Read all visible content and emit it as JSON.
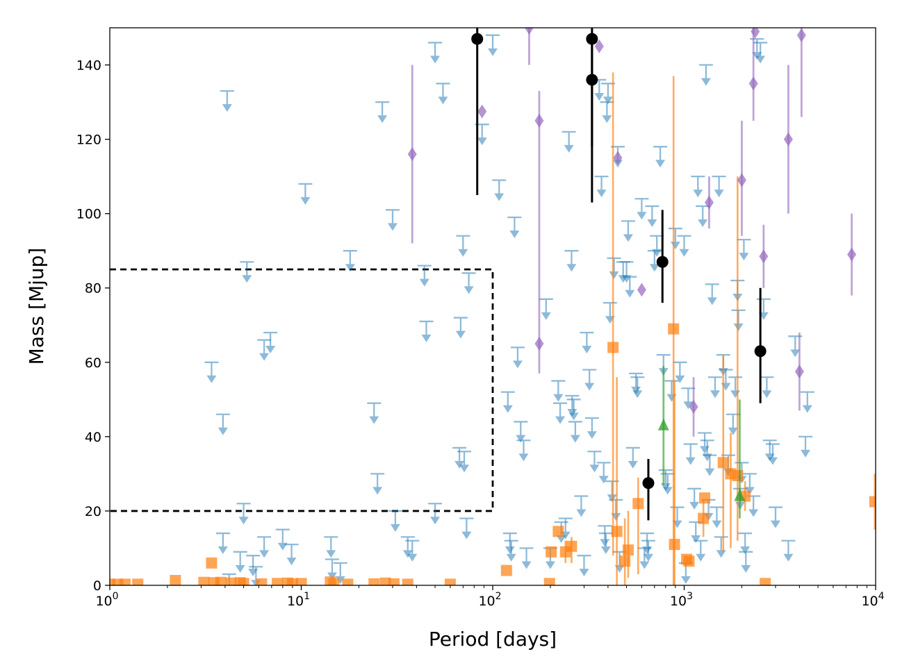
{
  "chart_data": {
    "type": "scatter",
    "title": "",
    "xlabel": "Period [days]",
    "ylabel": "Mass [Mjup]",
    "xscale": "log",
    "xlim": [
      1,
      10000
    ],
    "ylim": [
      0,
      150
    ],
    "x_ticks": [
      {
        "value": 1,
        "base": "10",
        "exp": "0"
      },
      {
        "value": 10,
        "base": "10",
        "exp": "1"
      },
      {
        "value": 100,
        "base": "10",
        "exp": "2"
      },
      {
        "value": 1000,
        "base": "10",
        "exp": "3"
      },
      {
        "value": 10000,
        "base": "10",
        "exp": "4"
      }
    ],
    "y_ticks": [
      "0",
      "20",
      "40",
      "60",
      "80",
      "100",
      "120",
      "140"
    ],
    "region": {
      "style": "dashed",
      "color": "#000000",
      "x": [
        1,
        100
      ],
      "y": [
        20,
        85
      ]
    },
    "series": [
      {
        "name": "upper limits",
        "marker": "down-arrow-limit",
        "color": "#1f77b4",
        "points": [
          [
            4.1,
            133
          ],
          [
            10.5,
            108
          ],
          [
            5.2,
            87
          ],
          [
            3.4,
            60
          ],
          [
            3.9,
            46
          ],
          [
            6.4,
            66
          ],
          [
            6.9,
            68
          ],
          [
            5.0,
            22
          ],
          [
            3.9,
            14
          ],
          [
            4.8,
            9
          ],
          [
            5.6,
            8
          ],
          [
            5.8,
            5
          ],
          [
            4.2,
            3
          ],
          [
            6.4,
            13
          ],
          [
            8.0,
            15
          ],
          [
            8.9,
            11
          ],
          [
            14.3,
            13
          ],
          [
            14.5,
            7
          ],
          [
            16.0,
            6
          ],
          [
            18.0,
            90
          ],
          [
            24.0,
            49
          ],
          [
            25.0,
            30
          ],
          [
            26.5,
            130
          ],
          [
            30.0,
            101
          ],
          [
            31.0,
            20
          ],
          [
            36.0,
            13
          ],
          [
            38.0,
            12
          ],
          [
            44.0,
            86
          ],
          [
            45.0,
            71
          ],
          [
            50.0,
            22
          ],
          [
            50.0,
            146
          ],
          [
            55.0,
            135
          ],
          [
            70.0,
            94
          ],
          [
            75.0,
            84
          ],
          [
            68.0,
            72
          ],
          [
            67.0,
            37
          ],
          [
            71.0,
            36
          ],
          [
            73.0,
            18
          ],
          [
            88.0,
            124
          ],
          [
            100.0,
            148
          ],
          [
            108.0,
            109
          ],
          [
            120.0,
            52
          ],
          [
            123.0,
            14
          ],
          [
            125.0,
            12
          ],
          [
            130.0,
            99
          ],
          [
            135.0,
            64
          ],
          [
            140.0,
            44
          ],
          [
            145.0,
            39
          ],
          [
            150.0,
            10
          ],
          [
            190.0,
            77
          ],
          [
            200.0,
            10
          ],
          [
            220.0,
            55
          ],
          [
            225.0,
            49
          ],
          [
            228.0,
            17
          ],
          [
            240.0,
            18
          ],
          [
            250.0,
            122
          ],
          [
            258.0,
            90
          ],
          [
            260.0,
            51
          ],
          [
            265.0,
            50
          ],
          [
            270.0,
            44
          ],
          [
            290.0,
            24
          ],
          [
            300.0,
            8
          ],
          [
            310.0,
            68
          ],
          [
            320.0,
            58
          ],
          [
            330.0,
            45
          ],
          [
            340.0,
            36
          ],
          [
            360.0,
            136
          ],
          [
            370.0,
            110
          ],
          [
            380.0,
            33
          ],
          [
            385.0,
            16
          ],
          [
            390.0,
            14
          ],
          [
            395.0,
            130
          ],
          [
            400.0,
            135
          ],
          [
            410.0,
            76
          ],
          [
            420.0,
            28
          ],
          [
            430.0,
            88
          ],
          [
            440.0,
            23
          ],
          [
            450.0,
            118
          ],
          [
            460.0,
            9
          ],
          [
            480.0,
            87
          ],
          [
            500.0,
            87
          ],
          [
            510.0,
            98
          ],
          [
            520.0,
            83
          ],
          [
            540.0,
            37
          ],
          [
            560.0,
            57
          ],
          [
            570.0,
            56
          ],
          [
            600.0,
            104
          ],
          [
            620.0,
            10
          ],
          [
            640.0,
            14
          ],
          [
            650.0,
            12
          ],
          [
            680.0,
            102
          ],
          [
            700.0,
            90
          ],
          [
            720.0,
            94
          ],
          [
            750.0,
            118
          ],
          [
            780.0,
            62
          ],
          [
            800.0,
            31
          ],
          [
            820.0,
            30
          ],
          [
            860.0,
            55
          ],
          [
            900.0,
            96
          ],
          [
            920.0,
            21
          ],
          [
            950.0,
            60
          ],
          [
            1000.0,
            94
          ],
          [
            1020.0,
            6
          ],
          [
            1050.0,
            53
          ],
          [
            1080.0,
            38
          ],
          [
            1130.0,
            26
          ],
          [
            1150.0,
            17
          ],
          [
            1180.0,
            110
          ],
          [
            1220.0,
            12
          ],
          [
            1250.0,
            102
          ],
          [
            1280.0,
            41
          ],
          [
            1300.0,
            140
          ],
          [
            1320.0,
            39
          ],
          [
            1340.0,
            23
          ],
          [
            1360.0,
            35
          ],
          [
            1400.0,
            81
          ],
          [
            1450.0,
            56
          ],
          [
            1480.0,
            21
          ],
          [
            1520.0,
            110
          ],
          [
            1560.0,
            13
          ],
          [
            1600.0,
            62
          ],
          [
            1650.0,
            58
          ],
          [
            1700.0,
            35
          ],
          [
            1800.0,
            46
          ],
          [
            1850.0,
            56
          ],
          [
            1900.0,
            82
          ],
          [
            1920.0,
            74
          ],
          [
            1960.0,
            26
          ],
          [
            2000.0,
            33
          ],
          [
            2050.0,
            93
          ],
          [
            2080.0,
            14
          ],
          [
            2100.0,
            9
          ],
          [
            2200.0,
            30
          ],
          [
            2300.0,
            24
          ],
          [
            2400.0,
            147
          ],
          [
            2500.0,
            146
          ],
          [
            2600.0,
            77
          ],
          [
            2700.0,
            56
          ],
          [
            2800.0,
            39
          ],
          [
            2900.0,
            38
          ],
          [
            3000.0,
            21
          ],
          [
            3500.0,
            12
          ],
          [
            3800.0,
            67
          ],
          [
            4300.0,
            40
          ],
          [
            4400.0,
            52
          ]
        ]
      },
      {
        "name": "orange squares",
        "marker": "square",
        "color": "#ff7f0e",
        "points": [
          [
            1.0,
            0.3
          ],
          [
            1.1,
            0.3
          ],
          [
            1.2,
            0.3
          ],
          [
            1.4,
            0.3
          ],
          [
            2.2,
            1.3
          ],
          [
            3.1,
            0.8
          ],
          [
            3.4,
            6
          ],
          [
            3.5,
            0.7
          ],
          [
            3.8,
            0.8
          ],
          [
            4.3,
            0.6
          ],
          [
            4.8,
            0.7
          ],
          [
            5.0,
            0.5
          ],
          [
            6.2,
            0.4
          ],
          [
            7.5,
            0.5
          ],
          [
            8.5,
            0.6
          ],
          [
            9.0,
            0.4
          ],
          [
            10.0,
            0.5
          ],
          [
            14.2,
            0.9
          ],
          [
            14.8,
            0.4
          ],
          [
            17.5,
            0.3
          ],
          [
            24.0,
            0.4
          ],
          [
            27.5,
            0.6
          ],
          [
            30.5,
            0.4
          ],
          [
            36.0,
            0.3
          ],
          [
            60.0,
            0.3
          ],
          [
            118.0,
            4
          ],
          [
            198.0,
            0.5
          ],
          [
            202.0,
            9
          ],
          [
            220.0,
            14.5
          ],
          [
            240.0,
            9
          ],
          [
            258.0,
            10.5
          ],
          [
            425.0,
            64
          ],
          [
            445.0,
            14.5
          ],
          [
            490.0,
            6.5
          ],
          [
            510.0,
            9.5
          ],
          [
            575.0,
            22
          ],
          [
            880.0,
            69
          ],
          [
            890.0,
            11
          ],
          [
            1030.0,
            7
          ],
          [
            1060.0,
            6.5
          ],
          [
            1260.0,
            18
          ],
          [
            1280.0,
            23.5
          ],
          [
            1600.0,
            33
          ],
          [
            1750.0,
            30
          ],
          [
            1900.0,
            29.5
          ],
          [
            2080.0,
            24
          ],
          [
            2650.0,
            0.5
          ],
          [
            9900.0,
            22.5
          ]
        ],
        "errors": [
          [
            425.0,
            8,
            138
          ],
          [
            445.0,
            0,
            56
          ],
          [
            490.0,
            0,
            18
          ],
          [
            510.0,
            2,
            20
          ],
          [
            575.0,
            3,
            29
          ],
          [
            880.0,
            0,
            137
          ],
          [
            890.0,
            0,
            55
          ],
          [
            1260.0,
            13,
            23
          ],
          [
            1600.0,
            9,
            62
          ],
          [
            1750.0,
            10,
            41
          ],
          [
            1900.0,
            12,
            110
          ],
          [
            2080.0,
            20,
            28
          ],
          [
            9900.0,
            15,
            30
          ],
          [
            240.0,
            6,
            12
          ],
          [
            258.0,
            6,
            13
          ]
        ]
      },
      {
        "name": "purple diamonds",
        "marker": "diamond",
        "color": "#9467bd",
        "points": [
          [
            38.0,
            116
          ],
          [
            88.0,
            127.5
          ],
          [
            155.0,
            150
          ],
          [
            175.0,
            125
          ],
          [
            175.0,
            65
          ],
          [
            360.0,
            145
          ],
          [
            450.0,
            115
          ],
          [
            600.0,
            79.5
          ],
          [
            1120.0,
            48
          ],
          [
            1350.0,
            103
          ],
          [
            2000.0,
            109
          ],
          [
            2300.0,
            135
          ],
          [
            2350.0,
            149
          ],
          [
            2600.0,
            88.5
          ],
          [
            3500.0,
            120
          ],
          [
            4000.0,
            57.5
          ],
          [
            4100.0,
            148
          ],
          [
            7500.0,
            89
          ]
        ],
        "errors": [
          [
            38.0,
            92,
            140
          ],
          [
            155.0,
            140,
            150
          ],
          [
            175.0,
            57,
            133
          ],
          [
            1120.0,
            40,
            56
          ],
          [
            1350.0,
            96,
            110
          ],
          [
            2000.0,
            94,
            125
          ],
          [
            2300.0,
            125,
            150
          ],
          [
            2600.0,
            80,
            97
          ],
          [
            3500.0,
            100,
            140
          ],
          [
            4000.0,
            47,
            68
          ],
          [
            4100.0,
            126,
            150
          ],
          [
            7500.0,
            78,
            100
          ]
        ]
      },
      {
        "name": "green triangles",
        "marker": "triangle-up",
        "color": "#2ca02c",
        "points": [
          [
            780.0,
            43
          ],
          [
            1950.0,
            24
          ]
        ],
        "errors": [
          [
            780.0,
            27,
            59
          ],
          [
            1950.0,
            18,
            50
          ]
        ]
      },
      {
        "name": "black circles",
        "marker": "circle",
        "color": "#000000",
        "points": [
          [
            83.0,
            147
          ],
          [
            330.0,
            147
          ],
          [
            330.0,
            136
          ],
          [
            770.0,
            87
          ],
          [
            2500.0,
            63
          ],
          [
            650.0,
            27.5
          ]
        ],
        "errors": [
          [
            83.0,
            105,
            150
          ],
          [
            330.0,
            118,
            150
          ],
          [
            330.0,
            103,
            148
          ],
          [
            770.0,
            76,
            101
          ],
          [
            2500.0,
            49,
            80
          ],
          [
            650.0,
            17.5,
            34
          ]
        ]
      }
    ]
  }
}
